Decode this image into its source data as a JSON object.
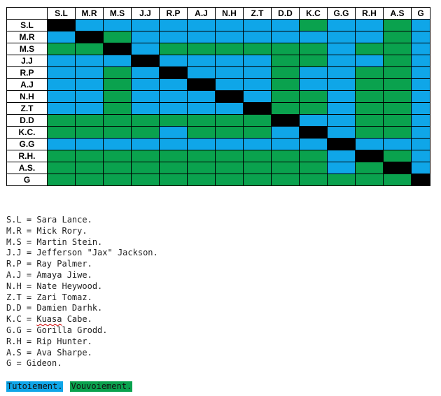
{
  "chart_data": {
    "type": "heatmap",
    "columns": [
      "S.L",
      "M.R",
      "M.S",
      "J.J",
      "R.P",
      "A.J",
      "N.H",
      "Z.T",
      "D.D",
      "K.C",
      "G.G",
      "R.H",
      "A.S",
      "G"
    ],
    "rows": [
      "S.L",
      "M.R",
      "M.S",
      "J.J",
      "R.P",
      "A.J",
      "N.H",
      "Z.T",
      "D.D",
      "K.C.",
      "G.G",
      "R.H.",
      "A.S.",
      "G"
    ],
    "cells": [
      "XTTTTTTTTVTTVT",
      "TXVTTTTTTTTTVT",
      "VVXTVVVVVVTVVT",
      "TTTXTTTTVVTTVT",
      "TTVTXTTTVTTVVT",
      "TTVTTXTTVTTVVT",
      "TTVTTTXTVVTVVT",
      "TTVTTTTXVVTVVT",
      "VVVVVVVVXTTVVT",
      "VVVVTVVVTXTVVT",
      "TTTTTTTTTTXTTT",
      "VVVVVVVVVVTXVT",
      "VVVVVVVVVVTVXT",
      "VVVVVVVVVVVVVX"
    ],
    "cell_codes": {
      "X": "diagonal",
      "T": "Tutoiement.",
      "V": "Vouvoiement."
    },
    "colors": {
      "T": "#0fa6e8",
      "V": "#0aa24e",
      "X": "#000000"
    }
  },
  "legend_lines": [
    {
      "text": "S.L = Sara Lance.",
      "squiggle": ""
    },
    {
      "text": "M.R = Mick Rory.",
      "squiggle": ""
    },
    {
      "text": "M.S = Martin Stein.",
      "squiggle": ""
    },
    {
      "text": "J.J = Jefferson \"Jax\" Jackson.",
      "squiggle": ""
    },
    {
      "text": "R.P = Ray Palmer.",
      "squiggle": ""
    },
    {
      "text": "A.J = Amaya Jiwe.",
      "squiggle": ""
    },
    {
      "text": "N.H = Nate Heywood.",
      "squiggle": ""
    },
    {
      "text": "Z.T = Zari Tomaz.",
      "squiggle": ""
    },
    {
      "text": "D.D = Damien Darhk.",
      "squiggle": ""
    },
    {
      "text": "K.C = Kuasa Cabe.",
      "squiggle": "Kuasa"
    },
    {
      "text": "G.G = Gorilla Grodd.",
      "squiggle": ""
    },
    {
      "text": "R.H = Rip Hunter.",
      "squiggle": ""
    },
    {
      "text": "A.S = Ava Sharpe.",
      "squiggle": ""
    },
    {
      "text": "G = Gideon.",
      "squiggle": ""
    }
  ],
  "keys": [
    {
      "label": "Tutoiement.",
      "color": "#0fa6e8"
    },
    {
      "label": "Vouvoiement.",
      "color": "#0aa24e"
    }
  ]
}
